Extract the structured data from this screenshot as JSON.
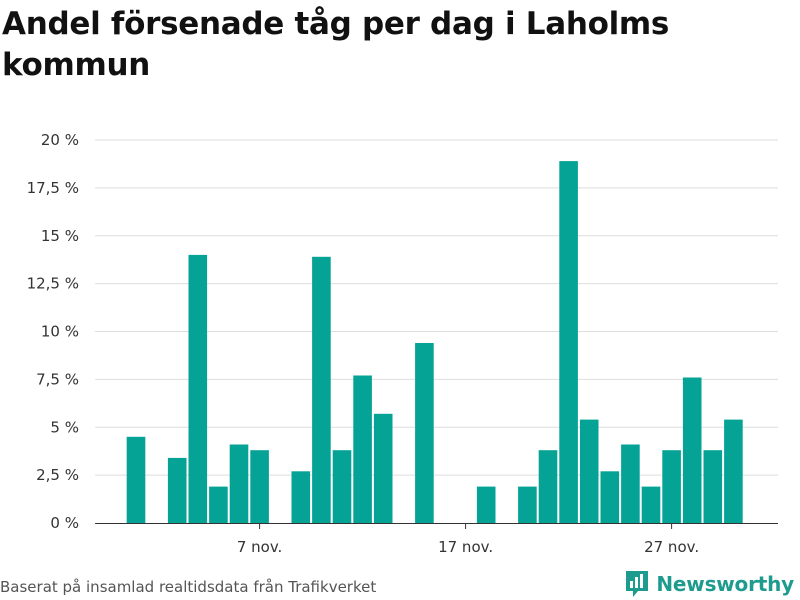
{
  "chart_data": {
    "type": "bar",
    "title": "Andel försenade tåg per dag i Laholms kommun",
    "xlabel": "",
    "ylabel": "",
    "x_ticks": [
      "7 nov.",
      "17 nov.",
      "27 nov."
    ],
    "x_tick_days": [
      7,
      17,
      27
    ],
    "y_ticks": [
      "0 %",
      "2,5 %",
      "5 %",
      "7,5 %",
      "10 %",
      "12,5 %",
      "15 %",
      "17,5 %",
      "20 %"
    ],
    "ylim": [
      0,
      20
    ],
    "grid": true,
    "legend": "none",
    "color": "#05a296",
    "series": [
      {
        "days": [
          1,
          3,
          4,
          5,
          6,
          7,
          9,
          10,
          11,
          12,
          13,
          15,
          18,
          20,
          21,
          22,
          23,
          24,
          25,
          26,
          27,
          28,
          29,
          30
        ],
        "values": [
          4.5,
          3.4,
          14.0,
          1.9,
          4.1,
          3.8,
          2.7,
          13.9,
          3.8,
          7.7,
          5.7,
          9.4,
          1.9,
          1.9,
          3.8,
          18.9,
          5.4,
          2.7,
          4.1,
          1.9,
          3.8,
          7.6,
          3.8,
          5.4
        ]
      }
    ]
  },
  "footer": {
    "source": "Baserat på insamlad realtidsdata från Trafikverket",
    "brand": "Newsworthy",
    "logo_icon": "bar-chart-logo-icon"
  }
}
